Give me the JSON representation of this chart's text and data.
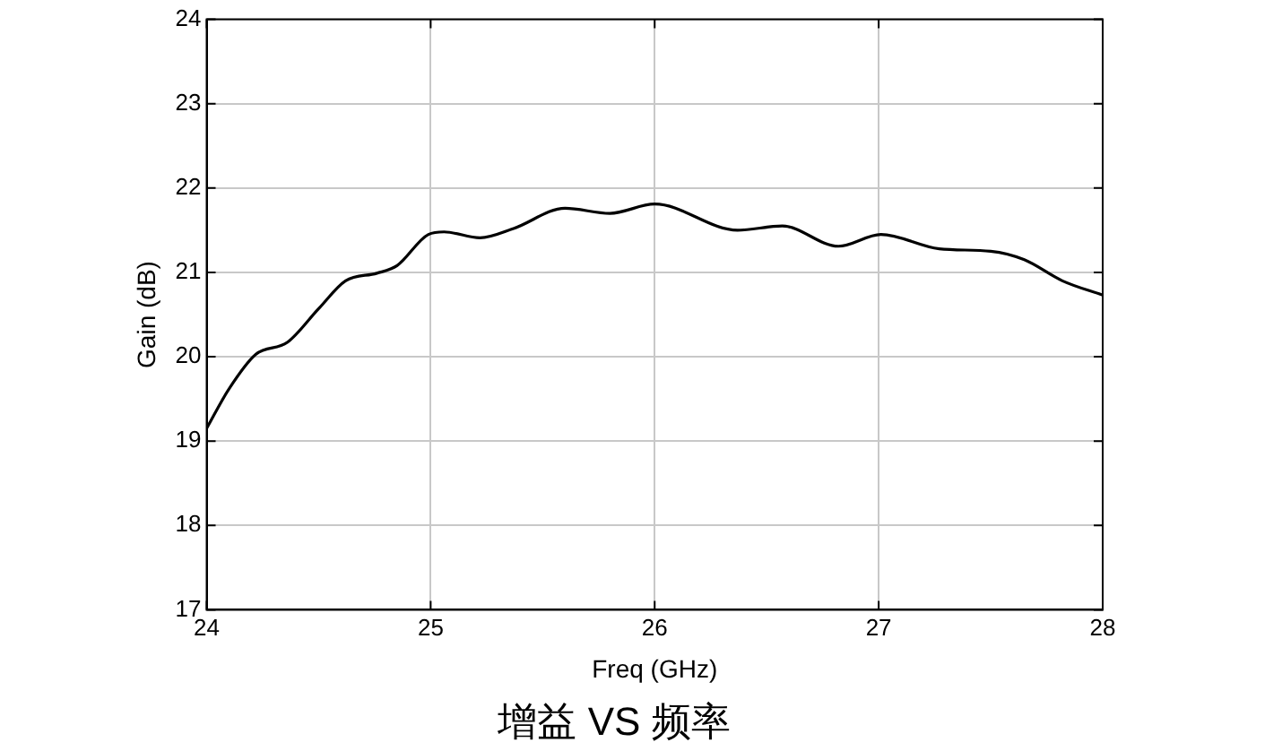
{
  "chart_data": {
    "type": "line",
    "title": "增益 VS 频率",
    "xlabel": "Freq (GHz)",
    "ylabel": "Gain (dB)",
    "x": [
      24.0,
      24.1,
      24.22,
      24.36,
      24.5,
      24.62,
      24.76,
      24.85,
      24.99,
      25.06,
      25.22,
      25.37,
      25.6,
      25.8,
      26.0,
      26.37,
      26.57,
      26.82,
      27.01,
      27.27,
      27.5,
      27.65,
      27.82,
      28.0
    ],
    "series": [
      {
        "color": "#000000",
        "values": [
          19.15,
          19.62,
          20.03,
          20.17,
          20.57,
          20.9,
          20.99,
          21.08,
          21.45,
          21.48,
          21.41,
          21.52,
          21.76,
          21.7,
          21.81,
          21.5,
          21.55,
          21.31,
          21.45,
          21.28,
          21.25,
          21.15,
          20.9,
          20.73
        ]
      }
    ],
    "xlim": [
      24,
      28
    ],
    "xticks": [
      24,
      25,
      26,
      27,
      28
    ],
    "ylim": [
      17,
      24
    ],
    "yticks": [
      17,
      18,
      19,
      20,
      21,
      22,
      23,
      24
    ],
    "grid": true,
    "legend": false,
    "marker": "none",
    "line_style": "solid"
  }
}
